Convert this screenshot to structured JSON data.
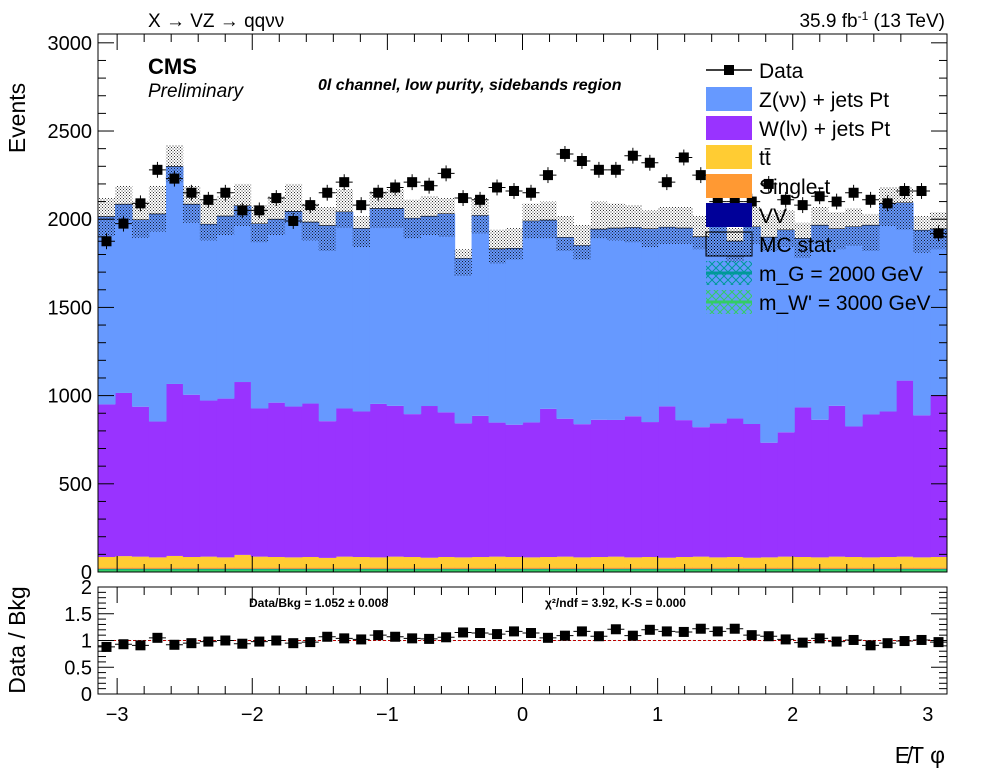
{
  "header": {
    "process": "X → VZ → qqνν",
    "lumi": "35.9 fb",
    "lumi_exp": "-1",
    "energy": "(13 TeV)",
    "experiment": "CMS",
    "status": "Preliminary",
    "region": "0l channel, low purity, sidebands region"
  },
  "axes": {
    "main_ylabel": "Events",
    "ratio_ylabel": "Data / Bkg",
    "xlabel": "E̸T φ",
    "main_yticks": [
      "0",
      "500",
      "1000",
      "1500",
      "2000",
      "2500",
      "3000"
    ],
    "ratio_yticks": [
      "0",
      "0.5",
      "1",
      "1.5",
      "2"
    ],
    "xticks": [
      "−3",
      "−2",
      "−1",
      "0",
      "1",
      "2",
      "3"
    ]
  },
  "legend": [
    {
      "label": "Data",
      "kind": "marker",
      "color": "#000000"
    },
    {
      "label": "Z(νν) + jets Pt",
      "kind": "fill",
      "color": "#6699ff"
    },
    {
      "label": "W(lν) + jets Pt",
      "kind": "fill",
      "color": "#9933ff"
    },
    {
      "label": "tt̄",
      "kind": "fill",
      "color": "#ffcc33"
    },
    {
      "label": "Single-t",
      "kind": "fill",
      "color": "#ff9933"
    },
    {
      "label": "VV",
      "kind": "fill",
      "color": "#000099"
    },
    {
      "label": "MC stat.",
      "kind": "hatch",
      "color": "#000000"
    },
    {
      "label": "m_G = 2000 GeV",
      "kind": "signal",
      "color": "#009999"
    },
    {
      "label": "m_W' = 3000 GeV",
      "kind": "signal",
      "color": "#33cc66"
    }
  ],
  "ratio_text": {
    "data_bkg": "Data/Bkg = 1.052 ± 0.008",
    "chi2": "χ²/ndf = 3.92,   K-S = 0.000"
  },
  "chart_data": {
    "type": "bar",
    "stacked": true,
    "xlim": [
      -3.1416,
      3.1416
    ],
    "ylim": [
      0,
      3050
    ],
    "ratio_ylim": [
      0,
      2
    ],
    "nbins": 50,
    "grid": false,
    "legend_position": "top-right",
    "series": [
      {
        "name": "VV",
        "color": "#000099",
        "values": [
          10,
          10,
          10,
          10,
          10,
          10,
          10,
          10,
          10,
          10,
          10,
          10,
          10,
          10,
          10,
          10,
          10,
          10,
          10,
          10,
          10,
          10,
          10,
          10,
          10,
          10,
          10,
          10,
          10,
          10,
          10,
          10,
          10,
          10,
          10,
          10,
          10,
          10,
          10,
          10,
          10,
          10,
          10,
          10,
          10,
          10,
          10,
          10,
          10,
          10
        ]
      },
      {
        "name": "Single-t",
        "color": "#ff9933",
        "values": [
          15,
          15,
          15,
          15,
          15,
          15,
          15,
          15,
          15,
          15,
          15,
          15,
          15,
          15,
          15,
          15,
          15,
          15,
          15,
          15,
          15,
          15,
          15,
          15,
          15,
          15,
          15,
          15,
          15,
          15,
          15,
          15,
          15,
          15,
          15,
          15,
          15,
          15,
          15,
          15,
          15,
          15,
          15,
          15,
          15,
          15,
          15,
          15,
          15,
          15
        ]
      },
      {
        "name": "tt̄",
        "color": "#ffcc33",
        "values": [
          60,
          65,
          62,
          58,
          66,
          60,
          62,
          58,
          72,
          62,
          60,
          58,
          60,
          55,
          62,
          60,
          58,
          62,
          60,
          56,
          60,
          58,
          60,
          62,
          60,
          58,
          60,
          62,
          58,
          60,
          62,
          58,
          60,
          56,
          60,
          62,
          58,
          60,
          56,
          58,
          62,
          60,
          58,
          62,
          60,
          58,
          60,
          62,
          58,
          60
        ]
      },
      {
        "name": "W(lν) + jets Pt",
        "color": "#9933ff",
        "values": [
          865,
          925,
          850,
          770,
          975,
          920,
          885,
          900,
          980,
          840,
          875,
          855,
          870,
          775,
          840,
          825,
          870,
          855,
          810,
          860,
          820,
          760,
          800,
          760,
          750,
          765,
          840,
          782,
          755,
          778,
          775,
          800,
          765,
          858,
          776,
          734,
          760,
          785,
          758,
          650,
          705,
          848,
          780,
          855,
          740,
          810,
          825,
          998,
          805,
          918
        ]
      },
      {
        "name": "Z(νν) + jets Pt",
        "color": "#6699ff",
        "values": [
          1065,
          1070,
          1060,
          1177,
          1233,
          1080,
          1000,
          1035,
          1000,
          1048,
          1040,
          1107,
          1029,
          1109,
          1115,
          1038,
          1108,
          1120,
          1111,
          1076,
          1126,
          935,
          1136,
          985,
          1000,
          1142,
          1070,
          1028,
          1013,
          1081,
          1088,
          1070,
          1096,
          1016,
          1089,
          1079,
          1115,
          1006,
          1118,
          1165,
          1148,
          958,
          1103,
          1004,
          1133,
          1073,
          1180,
          1009,
          1050,
          942
        ]
      }
    ],
    "mc_stat_band": {
      "label": "MC stat.",
      "upper": [
        2120,
        2190,
        2100,
        2190,
        2420,
        2190,
        2100,
        2130,
        2200,
        2080,
        2130,
        2200,
        2090,
        2070,
        2170,
        2020,
        2160,
        2170,
        2110,
        2130,
        2120,
        1830,
        2120,
        1940,
        1950,
        2090,
        2100,
        2020,
        1970,
        2100,
        2090,
        2080,
        2050,
        2070,
        2070,
        2020,
        2080,
        1950,
        2070,
        2030,
        2050,
        1980,
        2070,
        2040,
        2060,
        2030,
        2180,
        2180,
        2020,
        2040
      ],
      "lower": [
        1905,
        1990,
        1895,
        1930,
        2210,
        1980,
        1880,
        1910,
        1960,
        1870,
        1910,
        1980,
        1880,
        1820,
        1950,
        1840,
        1950,
        1950,
        1890,
        1910,
        1900,
        1680,
        1920,
        1750,
        1770,
        1890,
        1890,
        1820,
        1770,
        1890,
        1880,
        1870,
        1840,
        1860,
        1860,
        1830,
        1870,
        1760,
        1860,
        1820,
        1840,
        1780,
        1860,
        1830,
        1850,
        1820,
        1960,
        1940,
        1810,
        1830
      ]
    },
    "data": {
      "name": "Data",
      "values": [
        1875,
        1975,
        2090,
        2280,
        2230,
        2150,
        2110,
        2150,
        2050,
        2050,
        2120,
        1990,
        2080,
        2150,
        2210,
        2080,
        2150,
        2180,
        2210,
        2190,
        2260,
        2120,
        2110,
        2180,
        2160,
        2150,
        2250,
        2370,
        2330,
        2280,
        2280,
        2360,
        2320,
        2210,
        2350,
        2250,
        2100,
        2100,
        2100,
        2200,
        2110,
        2080,
        2130,
        2100,
        2150,
        2110,
        2090,
        2160,
        2160,
        1920
      ],
      "error": 45
    },
    "ratio": {
      "values": [
        0.88,
        0.93,
        0.91,
        1.05,
        0.92,
        0.95,
        0.98,
        1.0,
        0.94,
        0.98,
        1.0,
        0.95,
        0.97,
        1.07,
        1.04,
        1.02,
        1.1,
        1.07,
        1.04,
        1.03,
        1.06,
        1.15,
        1.14,
        1.12,
        1.17,
        1.14,
        1.05,
        1.09,
        1.17,
        1.08,
        1.21,
        1.09,
        1.2,
        1.17,
        1.16,
        1.22,
        1.17,
        1.22,
        1.1,
        1.08,
        1.02,
        0.96,
        1.04,
        0.98,
        1.01,
        0.91,
        0.95,
        0.99,
        1.01,
        0.97
      ],
      "error": 0.04
    },
    "signals": [
      {
        "name": "m_G = 2000 GeV",
        "color": "#009999",
        "level": 12
      },
      {
        "name": "m_W' = 3000 GeV",
        "color": "#33cc66",
        "level": 8
      }
    ]
  }
}
